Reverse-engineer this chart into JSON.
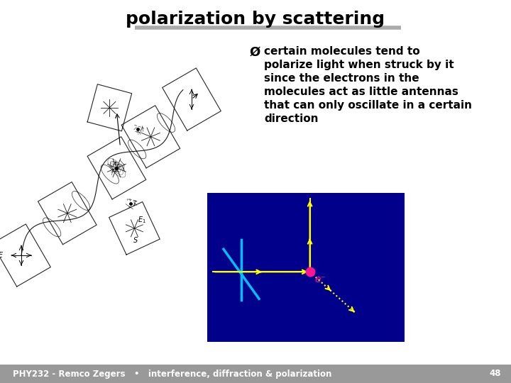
{
  "title": "polarization by scattering",
  "title_fontsize": 18,
  "title_fontweight": "bold",
  "slide_bg": "#ffffff",
  "bullet_marker": "Ø",
  "bullet_text_lines": [
    "certain molecules tend to",
    "polarize light when struck by it",
    "since the electrons in the",
    "molecules act as little antennas",
    "that can only oscillate in a certain",
    "direction"
  ],
  "bullet_fontsize": 11,
  "footer_text": "PHY232 - Remco Zegers   •   interference, diffraction & polarization",
  "footer_page": "48",
  "footer_bg": "#999999",
  "inset_bg": "#00008B",
  "arrow_color": "#FFFF00",
  "cyan_color": "#00BFFF",
  "dot_color": "#FF1493",
  "title_underline_color": "#aaaaaa"
}
